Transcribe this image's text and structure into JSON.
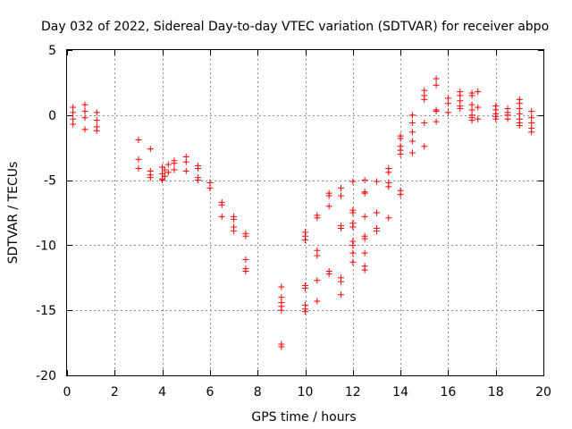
{
  "chart_data": {
    "type": "scatter",
    "title": "Day 032 of 2022, Sidereal Day-to-day VTEC variation (SDTVAR) for receiver abpo",
    "xlabel": "GPS time / hours",
    "ylabel": "SDTVAR / TECUs",
    "xlim": [
      0,
      20
    ],
    "ylim": [
      -20,
      5
    ],
    "x_ticks": [
      0,
      2,
      4,
      6,
      8,
      10,
      12,
      14,
      16,
      18,
      20
    ],
    "x_tick_labels": [
      "0",
      "2",
      "4",
      "6",
      "8",
      "10",
      "12",
      "14",
      "16",
      "18",
      "20"
    ],
    "y_ticks": [
      5,
      0,
      -5,
      -10,
      -15,
      -20
    ],
    "y_tick_labels": [
      "5",
      "0",
      "-5",
      "-10",
      "-15",
      "-20"
    ],
    "grid": true,
    "marker": "+",
    "marker_color": "#ff0000",
    "series": [
      {
        "name": "SDTVAR",
        "points": [
          [
            0.25,
            0.6
          ],
          [
            0.25,
            0.2
          ],
          [
            0.25,
            -0.3
          ],
          [
            0.25,
            -0.7
          ],
          [
            0.75,
            0.8
          ],
          [
            0.75,
            0.3
          ],
          [
            0.75,
            -0.2
          ],
          [
            0.75,
            -1.1
          ],
          [
            1.25,
            0.2
          ],
          [
            1.25,
            -0.4
          ],
          [
            1.25,
            -0.9
          ],
          [
            1.25,
            -1.2
          ],
          [
            3.0,
            -1.9
          ],
          [
            3.0,
            -3.4
          ],
          [
            3.0,
            -4.1
          ],
          [
            3.5,
            -2.6
          ],
          [
            3.5,
            -4.3
          ],
          [
            3.5,
            -4.6
          ],
          [
            3.5,
            -4.8
          ],
          [
            4.0,
            -4.0
          ],
          [
            4.0,
            -4.5
          ],
          [
            4.0,
            -4.9
          ],
          [
            4.0,
            -5.0
          ],
          [
            4.1,
            -4.2
          ],
          [
            4.1,
            -4.7
          ],
          [
            4.25,
            -3.8
          ],
          [
            4.25,
            -4.4
          ],
          [
            4.5,
            -3.5
          ],
          [
            4.5,
            -3.7
          ],
          [
            4.5,
            -4.2
          ],
          [
            5.0,
            -3.2
          ],
          [
            5.0,
            -3.6
          ],
          [
            5.0,
            -4.3
          ],
          [
            5.5,
            -3.9
          ],
          [
            5.5,
            -4.1
          ],
          [
            5.5,
            -4.8
          ],
          [
            5.5,
            -5.0
          ],
          [
            6.0,
            -5.2
          ],
          [
            6.0,
            -5.6
          ],
          [
            6.5,
            -6.7
          ],
          [
            6.5,
            -6.9
          ],
          [
            6.5,
            -7.8
          ],
          [
            7.0,
            -7.8
          ],
          [
            7.0,
            -8.0
          ],
          [
            7.0,
            -8.6
          ],
          [
            7.0,
            -8.9
          ],
          [
            7.5,
            -9.1
          ],
          [
            7.5,
            -9.3
          ],
          [
            7.5,
            -11.1
          ],
          [
            7.5,
            -11.8
          ],
          [
            7.5,
            -12.0
          ],
          [
            9.0,
            -13.2
          ],
          [
            9.0,
            -14.0
          ],
          [
            9.0,
            -14.4
          ],
          [
            9.0,
            -14.7
          ],
          [
            9.0,
            -15.0
          ],
          [
            9.0,
            -17.6
          ],
          [
            9.0,
            -17.8
          ],
          [
            10.0,
            -9.0
          ],
          [
            10.0,
            -9.3
          ],
          [
            10.0,
            -9.6
          ],
          [
            10.0,
            -13.1
          ],
          [
            10.0,
            -13.3
          ],
          [
            10.0,
            -14.6
          ],
          [
            10.0,
            -14.9
          ],
          [
            10.0,
            -15.1
          ],
          [
            10.5,
            -7.7
          ],
          [
            10.5,
            -7.9
          ],
          [
            10.5,
            -10.4
          ],
          [
            10.5,
            -10.8
          ],
          [
            10.5,
            -12.7
          ],
          [
            10.5,
            -14.3
          ],
          [
            11.0,
            -6.0
          ],
          [
            11.0,
            -6.2
          ],
          [
            11.0,
            -7.0
          ],
          [
            11.0,
            -12.0
          ],
          [
            11.0,
            -12.2
          ],
          [
            11.5,
            -5.6
          ],
          [
            11.5,
            -6.2
          ],
          [
            11.5,
            -8.5
          ],
          [
            11.5,
            -8.7
          ],
          [
            11.5,
            -12.5
          ],
          [
            11.5,
            -12.8
          ],
          [
            11.5,
            -13.8
          ],
          [
            12.0,
            -5.1
          ],
          [
            12.0,
            -7.3
          ],
          [
            12.0,
            -7.5
          ],
          [
            12.0,
            -8.3
          ],
          [
            12.0,
            -8.6
          ],
          [
            12.0,
            -9.7
          ],
          [
            12.0,
            -10.0
          ],
          [
            12.0,
            -10.6
          ],
          [
            12.0,
            -11.3
          ],
          [
            12.5,
            -5.0
          ],
          [
            12.5,
            -5.9
          ],
          [
            12.5,
            -6.0
          ],
          [
            12.5,
            -7.8
          ],
          [
            12.5,
            -9.3
          ],
          [
            12.5,
            -9.5
          ],
          [
            12.5,
            -10.6
          ],
          [
            12.5,
            -11.6
          ],
          [
            12.5,
            -11.9
          ],
          [
            13.0,
            -5.1
          ],
          [
            13.0,
            -7.5
          ],
          [
            13.0,
            -8.7
          ],
          [
            13.0,
            -8.9
          ],
          [
            13.5,
            -4.1
          ],
          [
            13.5,
            -4.4
          ],
          [
            13.5,
            -5.2
          ],
          [
            13.5,
            -5.5
          ],
          [
            13.5,
            -7.9
          ],
          [
            14.0,
            -1.6
          ],
          [
            14.0,
            -1.8
          ],
          [
            14.0,
            -2.4
          ],
          [
            14.0,
            -2.7
          ],
          [
            14.0,
            -3.0
          ],
          [
            14.0,
            -5.8
          ],
          [
            14.0,
            -6.1
          ],
          [
            14.5,
            0.0
          ],
          [
            14.5,
            -0.6
          ],
          [
            14.5,
            -1.3
          ],
          [
            14.5,
            -2.0
          ],
          [
            14.5,
            -2.9
          ],
          [
            15.0,
            1.9
          ],
          [
            15.0,
            1.5
          ],
          [
            15.0,
            1.2
          ],
          [
            15.0,
            -0.6
          ],
          [
            15.0,
            -2.4
          ],
          [
            15.5,
            2.8
          ],
          [
            15.5,
            2.3
          ],
          [
            15.5,
            0.4
          ],
          [
            15.5,
            0.3
          ],
          [
            15.5,
            -0.5
          ],
          [
            16.0,
            1.3
          ],
          [
            16.0,
            0.9
          ],
          [
            16.0,
            0.2
          ],
          [
            16.5,
            1.8
          ],
          [
            16.5,
            1.5
          ],
          [
            16.5,
            1.1
          ],
          [
            16.5,
            0.7
          ],
          [
            16.5,
            0.5
          ],
          [
            17.0,
            1.7
          ],
          [
            17.0,
            1.5
          ],
          [
            17.0,
            0.8
          ],
          [
            17.0,
            0.4
          ],
          [
            17.0,
            0.0
          ],
          [
            17.0,
            -0.2
          ],
          [
            17.0,
            -0.4
          ],
          [
            17.25,
            1.8
          ],
          [
            17.25,
            0.6
          ],
          [
            17.25,
            -0.3
          ],
          [
            18.0,
            0.7
          ],
          [
            18.0,
            0.4
          ],
          [
            18.0,
            0.1
          ],
          [
            18.0,
            -0.1
          ],
          [
            18.0,
            -0.3
          ],
          [
            18.5,
            0.5
          ],
          [
            18.5,
            0.2
          ],
          [
            18.5,
            0.0
          ],
          [
            18.5,
            -0.3
          ],
          [
            19.0,
            1.2
          ],
          [
            19.0,
            0.9
          ],
          [
            19.0,
            0.5
          ],
          [
            19.0,
            0.1
          ],
          [
            19.0,
            -0.3
          ],
          [
            19.0,
            -0.6
          ],
          [
            19.0,
            -0.8
          ],
          [
            19.5,
            0.3
          ],
          [
            19.5,
            -0.2
          ],
          [
            19.5,
            -0.6
          ],
          [
            19.5,
            -1.0
          ],
          [
            19.5,
            -1.3
          ]
        ]
      }
    ]
  }
}
